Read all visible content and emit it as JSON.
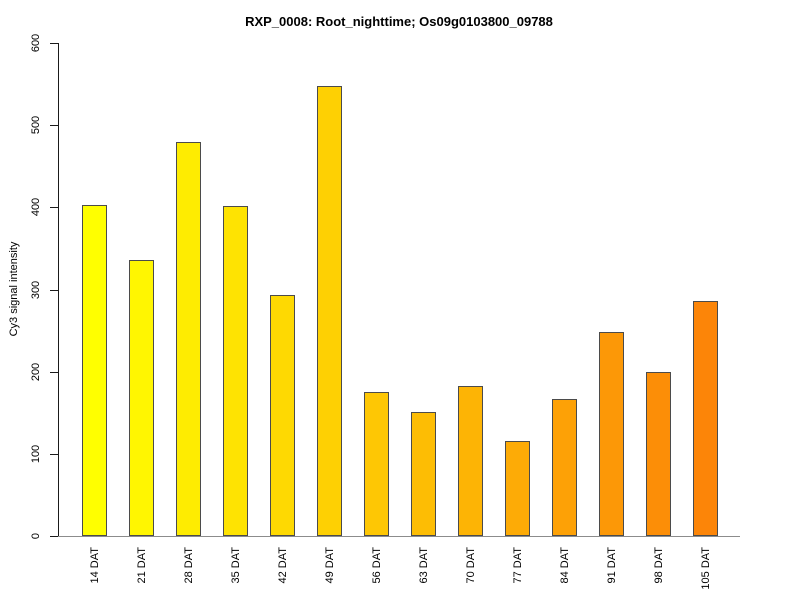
{
  "chart_data": {
    "type": "bar",
    "title": "RXP_0008: Root_nighttime; Os09g0103800_09788",
    "ylabel": "Cy3 signal intensity",
    "xlabel": "",
    "categories": [
      "14 DAT",
      "21 DAT",
      "28 DAT",
      "35 DAT",
      "42 DAT",
      "49 DAT",
      "56 DAT",
      "63 DAT",
      "70 DAT",
      "77 DAT",
      "84 DAT",
      "91 DAT",
      "98 DAT",
      "105 DAT"
    ],
    "values": [
      403,
      336,
      479,
      402,
      293,
      548,
      175,
      151,
      183,
      116,
      167,
      248,
      200,
      286
    ],
    "bar_colors": [
      "#FFFF00",
      "#FFF601",
      "#FEEC01",
      "#FEE302",
      "#FED902",
      "#FED003",
      "#FEC704",
      "#FDBD04",
      "#FDB405",
      "#FDAB06",
      "#FDA106",
      "#FC9807",
      "#FC8E07",
      "#FC8508"
    ],
    "yticks": [
      0,
      100,
      200,
      300,
      400,
      500,
      600
    ],
    "ylim": [
      0,
      600
    ],
    "grid": false,
    "legend": "none",
    "bar_border_color": "#4b4b4b",
    "axis_color": "#1a1a1a",
    "baseline_color": "#8c8c8c",
    "x_tick_label_rotation_deg": 90,
    "y_tick_label_rotation_deg": 90,
    "background_color": "#ffffff"
  }
}
